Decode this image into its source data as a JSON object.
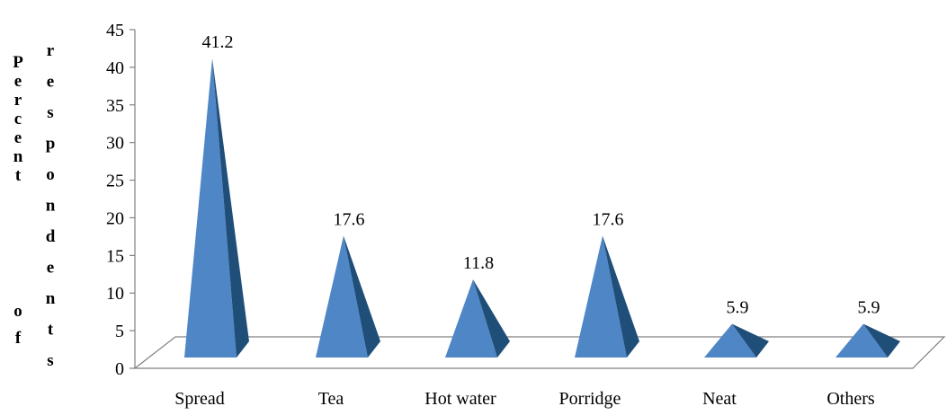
{
  "chart_data": {
    "type": "bar",
    "bar_shape": "pyramid",
    "categories": [
      "Spread",
      "Tea",
      "Hot water",
      "Porridge",
      "Neat",
      "Others"
    ],
    "values": [
      41.2,
      17.6,
      11.8,
      17.6,
      5.9,
      5.9
    ],
    "value_labels": [
      "41.2",
      "17.6",
      "11.8",
      "17.6",
      "5.9",
      "5.9"
    ],
    "title": "",
    "xlabel": "",
    "ylabel": "Percent of respondents",
    "ylabel_columns": [
      "Percent",
      "of",
      "respondents"
    ],
    "ylim": [
      0,
      45
    ],
    "yticks": [
      0,
      5,
      10,
      15,
      20,
      25,
      30,
      35,
      40,
      45
    ],
    "grid": false,
    "legend": "none",
    "colors": {
      "front": "#4f86c6",
      "side": "#1f4e79",
      "floor_edge": "#808080"
    }
  }
}
